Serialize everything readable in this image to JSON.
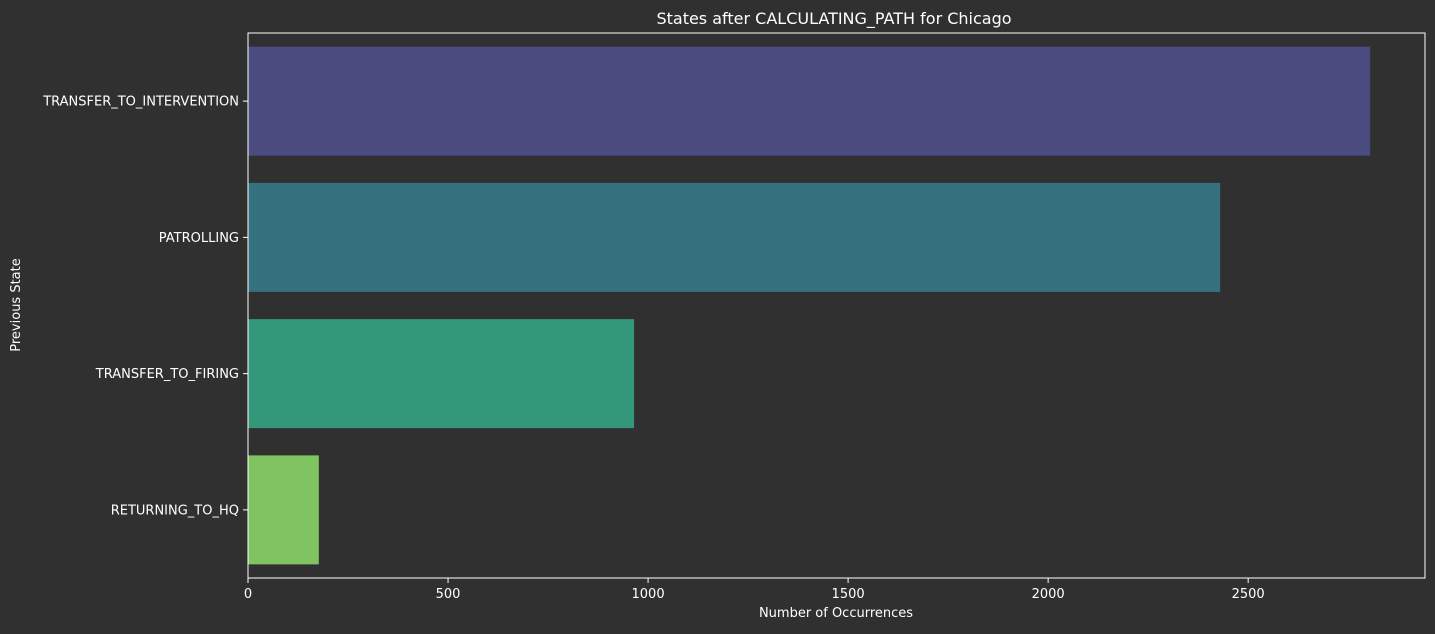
{
  "chart_data": {
    "type": "bar",
    "orientation": "horizontal",
    "title": "States after CALCULATING_PATH for Chicago",
    "xlabel": "Number of Occurrences",
    "ylabel": "Previous State",
    "categories": [
      "TRANSFER_TO_INTERVENTION",
      "PATROLLING",
      "TRANSFER_TO_FIRING",
      "RETURNING_TO_HQ"
    ],
    "values": [
      2805,
      2430,
      965,
      177
    ],
    "colors": [
      "#4a4c80",
      "#367180",
      "#33977a",
      "#80c462"
    ],
    "xlim": [
      0,
      2942
    ],
    "xticks": [
      0,
      500,
      1000,
      1500,
      2000,
      2500
    ],
    "grid": false,
    "background": "#303030",
    "axis_color": "#ffffff"
  }
}
